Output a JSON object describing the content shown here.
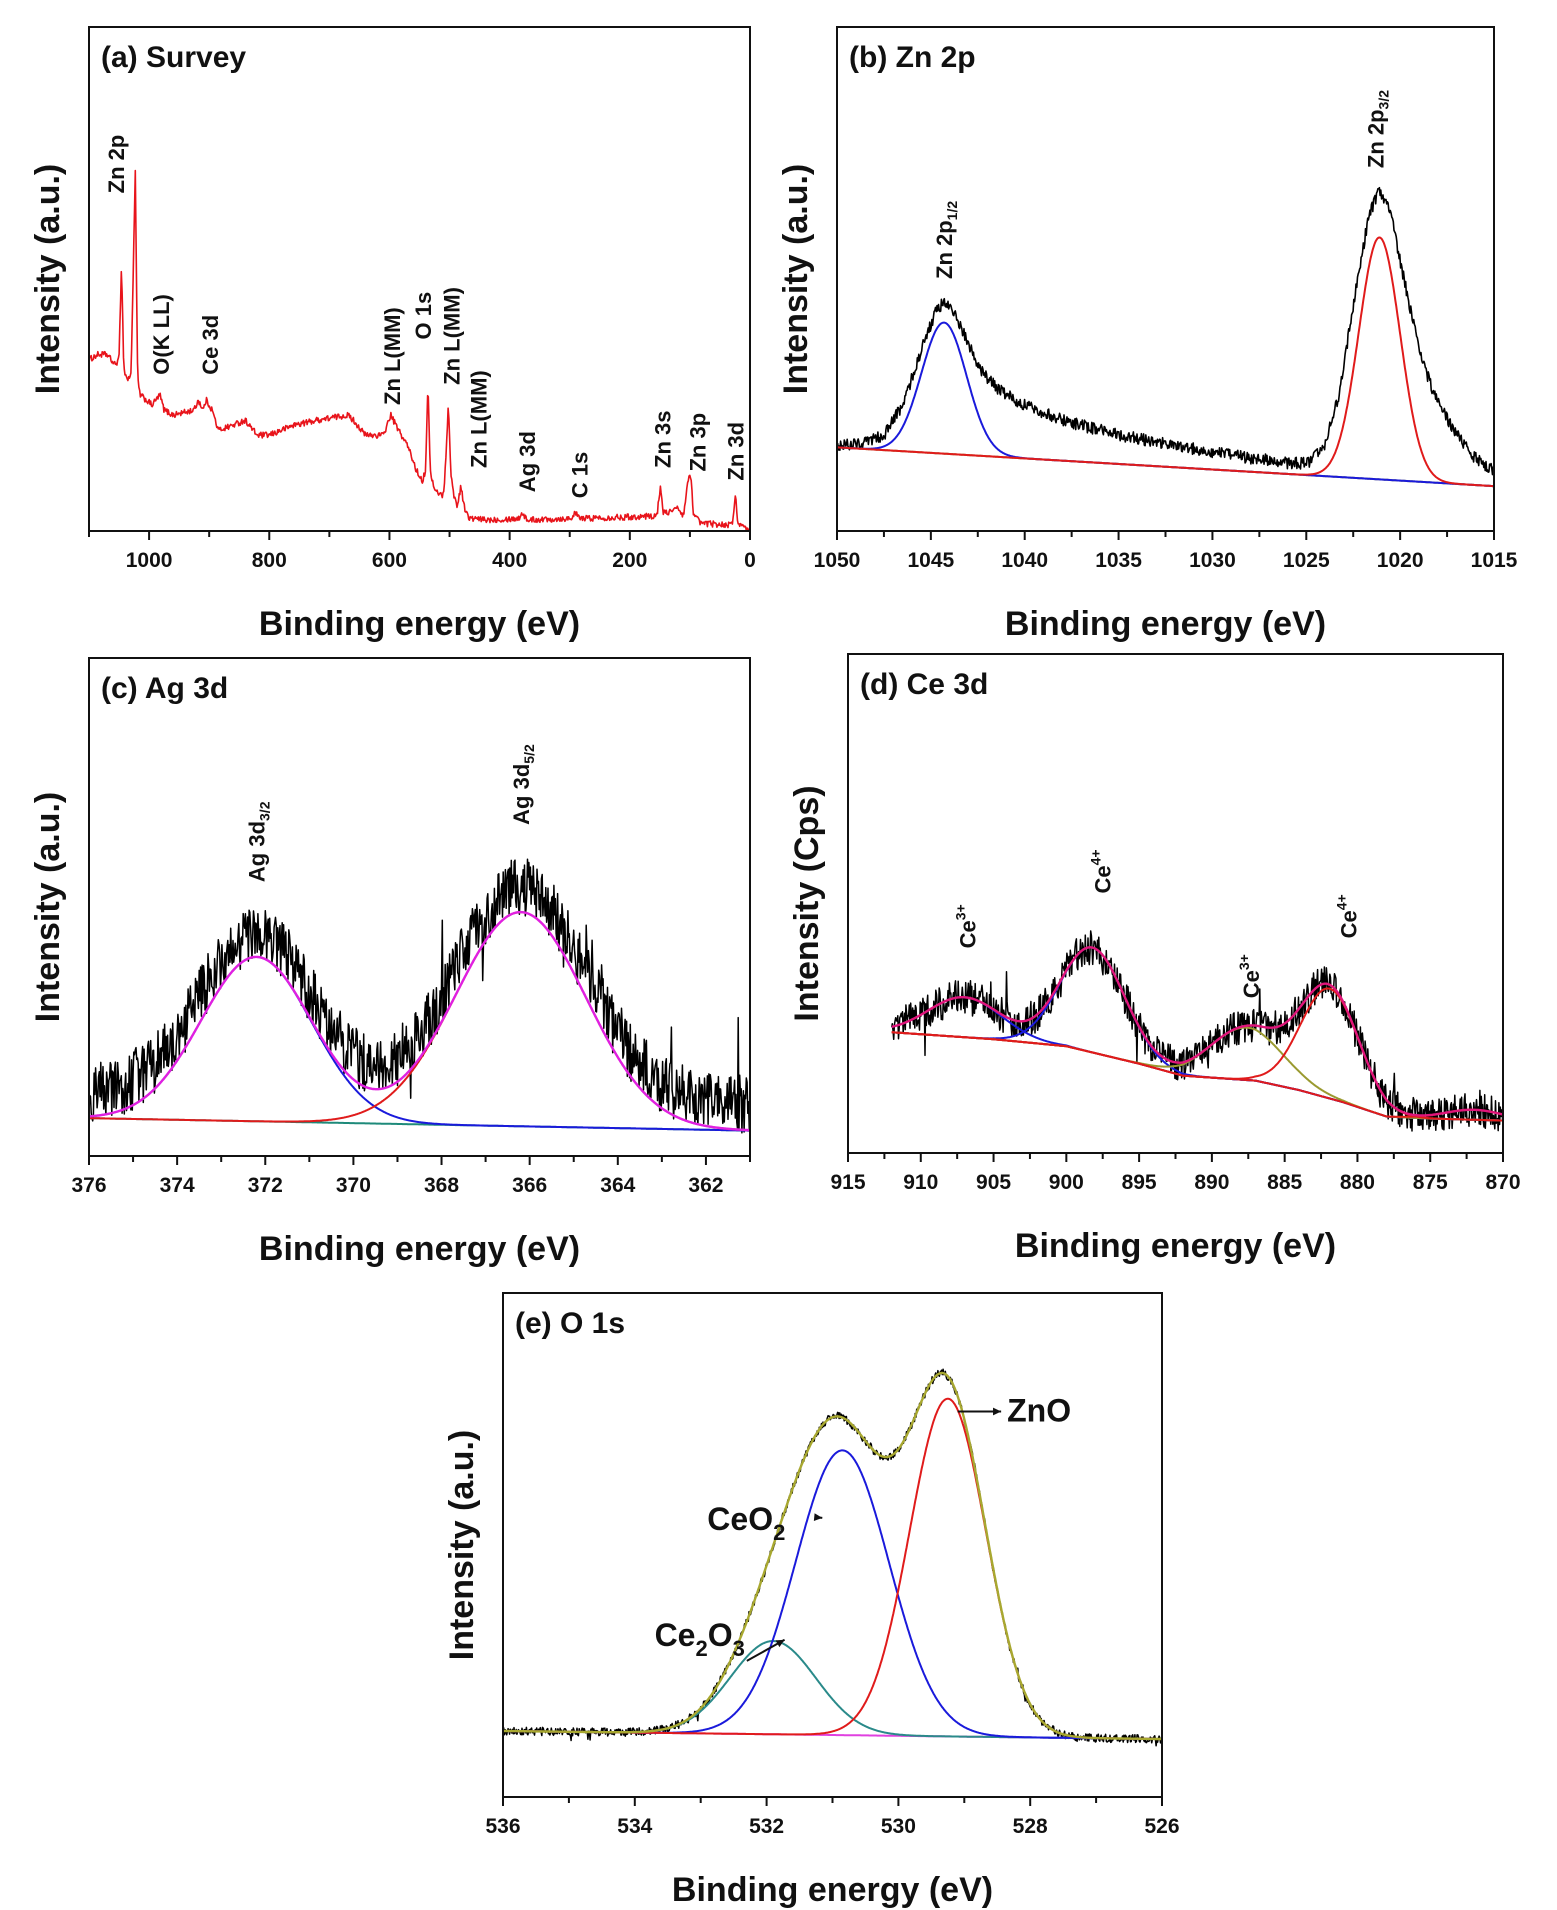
{
  "chart_data": [
    {
      "type": "line",
      "title": "(a) Survey",
      "xlabel": "Binding energy (eV)",
      "ylabel": "Intensity (a.u.)",
      "xlim": [
        1100,
        0
      ],
      "ylim": [
        0,
        1
      ],
      "xticks": [
        1000,
        800,
        600,
        400,
        200,
        0
      ],
      "xminor_step": 100,
      "grid": false,
      "annotation_orientation": "vertical",
      "spectrum": {
        "color": "#e8141b",
        "noise": 0.006,
        "points": [
          [
            1100,
            0.34
          ],
          [
            1085,
            0.35
          ],
          [
            1070,
            0.35
          ],
          [
            1057,
            0.33
          ],
          [
            1050,
            0.34
          ],
          [
            1046,
            0.53
          ],
          [
            1042,
            0.32
          ],
          [
            1036,
            0.3
          ],
          [
            1030,
            0.31
          ],
          [
            1023,
            0.71
          ],
          [
            1019,
            0.3
          ],
          [
            1015,
            0.27
          ],
          [
            995,
            0.25
          ],
          [
            982,
            0.27
          ],
          [
            975,
            0.24
          ],
          [
            960,
            0.23
          ],
          [
            925,
            0.24
          ],
          [
            918,
            0.26
          ],
          [
            910,
            0.24
          ],
          [
            905,
            0.26
          ],
          [
            895,
            0.24
          ],
          [
            885,
            0.2
          ],
          [
            860,
            0.21
          ],
          [
            840,
            0.22
          ],
          [
            820,
            0.19
          ],
          [
            800,
            0.19
          ],
          [
            760,
            0.21
          ],
          [
            720,
            0.22
          ],
          [
            670,
            0.23
          ],
          [
            660,
            0.22
          ],
          [
            640,
            0.19
          ],
          [
            610,
            0.19
          ],
          [
            598,
            0.23
          ],
          [
            585,
            0.2
          ],
          [
            570,
            0.17
          ],
          [
            555,
            0.12
          ],
          [
            545,
            0.1
          ],
          [
            540,
            0.12
          ],
          [
            536,
            0.29
          ],
          [
            532,
            0.12
          ],
          [
            525,
            0.08
          ],
          [
            510,
            0.07
          ],
          [
            506,
            0.15
          ],
          [
            502,
            0.25
          ],
          [
            498,
            0.12
          ],
          [
            493,
            0.07
          ],
          [
            487,
            0.05
          ],
          [
            481,
            0.09
          ],
          [
            476,
            0.05
          ],
          [
            468,
            0.025
          ],
          [
            440,
            0.022
          ],
          [
            385,
            0.025
          ],
          [
            378,
            0.037
          ],
          [
            372,
            0.022
          ],
          [
            300,
            0.025
          ],
          [
            290,
            0.035
          ],
          [
            284,
            0.025
          ],
          [
            200,
            0.028
          ],
          [
            155,
            0.03
          ],
          [
            149,
            0.09
          ],
          [
            144,
            0.035
          ],
          [
            130,
            0.04
          ],
          [
            120,
            0.045
          ],
          [
            110,
            0.03
          ],
          [
            104,
            0.1
          ],
          [
            98,
            0.11
          ],
          [
            94,
            0.03
          ],
          [
            80,
            0.015
          ],
          [
            30,
            0.012
          ],
          [
            24,
            0.07
          ],
          [
            20,
            0.015
          ],
          [
            10,
            0.005
          ],
          [
            0,
            0.0
          ]
        ]
      },
      "annotations": [
        {
          "x": 1055,
          "y": 0.67,
          "label": [
            {
              "t": "Zn 2p"
            }
          ]
        },
        {
          "x": 980,
          "y": 0.31,
          "label": [
            {
              "t": "O(K LL)"
            }
          ]
        },
        {
          "x": 899,
          "y": 0.31,
          "label": [
            {
              "t": "Ce 3d"
            }
          ]
        },
        {
          "x": 596,
          "y": 0.25,
          "label": [
            {
              "t": "Zn L(MM)"
            }
          ]
        },
        {
          "x": 544,
          "y": 0.38,
          "label": [
            {
              "t": "O 1s"
            }
          ]
        },
        {
          "x": 497,
          "y": 0.29,
          "label": [
            {
              "t": "Zn L(MM)"
            }
          ]
        },
        {
          "x": 452,
          "y": 0.125,
          "label": [
            {
              "t": "Zn L(MM)"
            }
          ]
        },
        {
          "x": 371,
          "y": 0.077,
          "label": [
            {
              "t": "Ag 3d"
            }
          ]
        },
        {
          "x": 284,
          "y": 0.065,
          "label": [
            {
              "t": "C 1s"
            }
          ]
        },
        {
          "x": 146,
          "y": 0.125,
          "label": [
            {
              "t": "Zn 3s"
            }
          ]
        },
        {
          "x": 87,
          "y": 0.118,
          "label": [
            {
              "t": "Zn 3p"
            }
          ]
        },
        {
          "x": 24,
          "y": 0.1,
          "label": [
            {
              "t": "Zn 3d"
            }
          ]
        }
      ]
    },
    {
      "type": "line",
      "title": "(b) Zn 2p",
      "xlabel": "Binding energy (eV)",
      "ylabel": "Intensity (a.u.)",
      "xlim": [
        1050,
        1015
      ],
      "ylim": [
        0,
        1
      ],
      "xticks": [
        1050,
        1045,
        1040,
        1035,
        1030,
        1025,
        1020,
        1015
      ],
      "xminor_step": 2.5,
      "grid": false,
      "annotation_orientation": "vertical",
      "spectrum": {
        "color": "#000000",
        "noise": 0.012,
        "points": [
          [
            1050,
            0.17
          ],
          [
            1048.5,
            0.175
          ],
          [
            1047.5,
            0.19
          ],
          [
            1046.5,
            0.25
          ],
          [
            1045.5,
            0.36
          ],
          [
            1044.8,
            0.43
          ],
          [
            1044.3,
            0.455
          ],
          [
            1043.7,
            0.43
          ],
          [
            1043,
            0.37
          ],
          [
            1042.2,
            0.31
          ],
          [
            1041.2,
            0.275
          ],
          [
            1040,
            0.25
          ],
          [
            1038,
            0.22
          ],
          [
            1035,
            0.19
          ],
          [
            1032,
            0.17
          ],
          [
            1029,
            0.15
          ],
          [
            1026,
            0.135
          ],
          [
            1024.8,
            0.135
          ],
          [
            1024,
            0.17
          ],
          [
            1023.2,
            0.28
          ],
          [
            1022.4,
            0.47
          ],
          [
            1021.7,
            0.62
          ],
          [
            1021.1,
            0.68
          ],
          [
            1020.5,
            0.63
          ],
          [
            1019.8,
            0.5
          ],
          [
            1019,
            0.36
          ],
          [
            1018.2,
            0.27
          ],
          [
            1017.3,
            0.21
          ],
          [
            1016.2,
            0.15
          ],
          [
            1015,
            0.12
          ]
        ]
      },
      "background": {
        "color": "#8b8b2a",
        "points": [
          [
            1050,
            0.166
          ],
          [
            1015,
            0.089
          ]
        ]
      },
      "components": [
        {
          "center": 1044.3,
          "height": 0.26,
          "sigma": 1.2,
          "color": "#1a1adb"
        },
        {
          "center": 1021.1,
          "height": 0.48,
          "sigma": 1.1,
          "color": "#e01b1b"
        }
      ],
      "annotations": [
        {
          "x": 1044.3,
          "y": 0.5,
          "label": [
            {
              "t": "Zn 2p"
            },
            {
              "t": "1/2",
              "sub": true
            }
          ]
        },
        {
          "x": 1021.3,
          "y": 0.72,
          "label": [
            {
              "t": "Zn 2p"
            },
            {
              "t": "3/2",
              "sub": true
            }
          ]
        }
      ]
    },
    {
      "type": "line",
      "title": "(c) Ag 3d",
      "xlabel": "Binding energy (eV)",
      "ylabel": "Intensity (a.u.)",
      "xlim": [
        376,
        361
      ],
      "ylim": [
        0,
        1
      ],
      "xticks": [
        376,
        374,
        372,
        370,
        368,
        366,
        364,
        362
      ],
      "xminor_step": 1,
      "grid": false,
      "annotation_orientation": "vertical",
      "data": {
        "color": "#000000",
        "noise": 0.06,
        "offset": 0.05
      },
      "background": {
        "color": "#1e8a7a",
        "points": [
          [
            376,
            0.076
          ],
          [
            361,
            0.051
          ]
        ]
      },
      "components": [
        {
          "center": 372.2,
          "height": 0.33,
          "sigma": 1.26,
          "color": "#1a1adb"
        },
        {
          "center": 366.2,
          "height": 0.43,
          "sigma": 1.48,
          "color": "#e01b1b"
        }
      ],
      "envelope": {
        "color": "#e020e0"
      },
      "annotations": [
        {
          "x": 372.2,
          "y": 0.55,
          "label": [
            {
              "t": "Ag 3d"
            },
            {
              "t": "3/2",
              "sub": true
            }
          ]
        },
        {
          "x": 366.2,
          "y": 0.665,
          "label": [
            {
              "t": "Ag 3d"
            },
            {
              "t": "5/2",
              "sub": true
            }
          ]
        }
      ]
    },
    {
      "type": "line",
      "title": "(d) Ce 3d",
      "xlabel": "Binding energy (eV)",
      "ylabel": "Intensity (Cps)",
      "xlim": [
        915,
        870
      ],
      "ylim": [
        0,
        1
      ],
      "xticks": [
        915,
        910,
        905,
        900,
        895,
        890,
        885,
        880,
        875,
        870
      ],
      "xminor_step": 2.5,
      "grid": false,
      "annotation_orientation": "vertical",
      "data_start": 912,
      "data": {
        "color": "#000000",
        "noise": 0.035,
        "offset": 0
      },
      "background": {
        "color": "#a03030",
        "points": [
          [
            912,
            0.242
          ],
          [
            905,
            0.228
          ],
          [
            900,
            0.214
          ],
          [
            895,
            0.179
          ],
          [
            892,
            0.155
          ],
          [
            890,
            0.151
          ],
          [
            887,
            0.145
          ],
          [
            884,
            0.126
          ],
          [
            881,
            0.102
          ],
          [
            878,
            0.073
          ],
          [
            875,
            0.069
          ],
          [
            870,
            0.065
          ]
        ]
      },
      "components": [
        {
          "center": 907,
          "height": 0.08,
          "sigma": 2.5,
          "color": "#1a1adb"
        },
        {
          "center": 898.2,
          "height": 0.21,
          "sigma": 2.2,
          "color": "#1a1adb"
        },
        {
          "center": 887.6,
          "height": 0.105,
          "sigma": 2.5,
          "color": "#9a9a30"
        },
        {
          "center": 881.9,
          "height": 0.22,
          "sigma": 2.0,
          "color": "#e01b1b"
        },
        {
          "center": 872,
          "height": 0.02,
          "sigma": 2.0,
          "color": "#e01b1b"
        }
      ],
      "envelope": {
        "color": "#e0157a"
      },
      "annotations": [
        {
          "x": 906.8,
          "y": 0.41,
          "label": [
            {
              "t": "Ce"
            },
            {
              "t": "3+",
              "sup": true
            }
          ]
        },
        {
          "x": 897.5,
          "y": 0.52,
          "label": [
            {
              "t": "Ce"
            },
            {
              "t": "4+",
              "sup": true
            }
          ]
        },
        {
          "x": 887.3,
          "y": 0.31,
          "label": [
            {
              "t": "Ce"
            },
            {
              "t": "3+",
              "sup": true
            }
          ]
        },
        {
          "x": 880.6,
          "y": 0.43,
          "label": [
            {
              "t": "Ce"
            },
            {
              "t": "4+",
              "sup": true
            }
          ]
        }
      ]
    },
    {
      "type": "line",
      "title": "(e) O 1s",
      "xlabel": "Binding energy (eV)",
      "ylabel": "Intensity (a.u.)",
      "xlim": [
        536,
        526
      ],
      "ylim": [
        0,
        1
      ],
      "xticks": [
        536,
        534,
        532,
        530,
        528,
        526
      ],
      "xminor_step": 1,
      "grid": false,
      "annotation_orientation": "horizontal",
      "data": {
        "color": "#000000",
        "noise": 0.008,
        "offset": 0
      },
      "background": {
        "color": "#e040e0",
        "points": [
          [
            536,
            0.131
          ],
          [
            526,
            0.115
          ]
        ]
      },
      "components": [
        {
          "center": 531.9,
          "height": 0.185,
          "sigma": 0.65,
          "color": "#2a8a8a"
        },
        {
          "center": 530.85,
          "height": 0.565,
          "sigma": 0.71,
          "color": "#1a1adb"
        },
        {
          "center": 529.25,
          "height": 0.67,
          "sigma": 0.58,
          "color": "#e01b1b"
        }
      ],
      "envelope": {
        "color": "#a8a830"
      },
      "annotations": [
        {
          "x": 528.35,
          "y": 0.745,
          "label": [
            {
              "t": "ZnO"
            }
          ],
          "arrow_from": [
            529.1,
            0.765
          ]
        },
        {
          "x": 532.9,
          "y": 0.53,
          "label": [
            {
              "t": "CeO"
            },
            {
              "t": "2",
              "sub": true
            }
          ],
          "arrow_from": [
            531.25,
            0.555
          ]
        },
        {
          "x": 533.7,
          "y": 0.3,
          "label": [
            {
              "t": "Ce"
            },
            {
              "t": "2",
              "sub": true
            },
            {
              "t": "O"
            },
            {
              "t": "3",
              "sub": true
            }
          ],
          "arrow_from": [
            532.3,
            0.27
          ]
        }
      ]
    }
  ]
}
